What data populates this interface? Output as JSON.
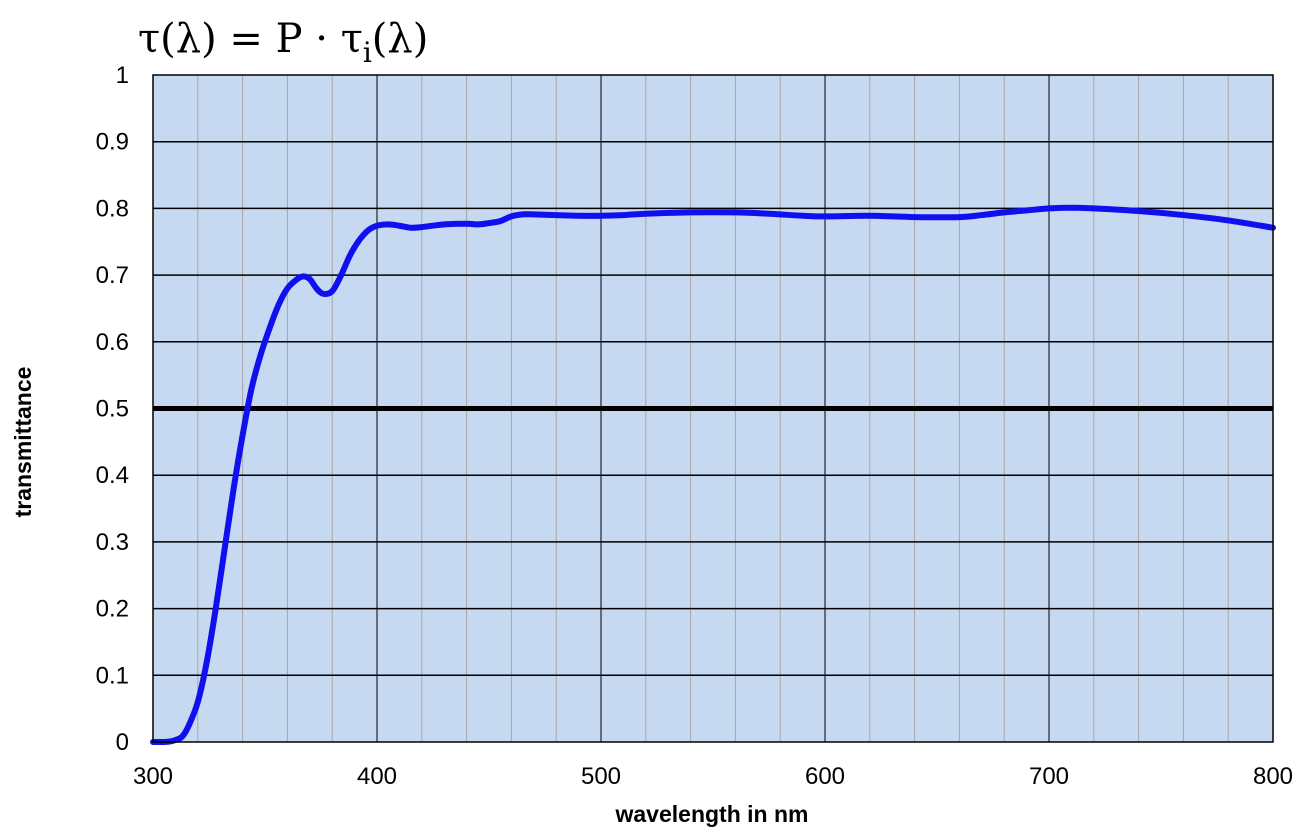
{
  "chart_data": {
    "type": "line",
    "title": "τ(λ) = P · τ_i(λ)",
    "title_parts": {
      "lhs": "τ(λ) = P · τ",
      "subscript": "i",
      "rhs": "(λ)"
    },
    "xlabel": "wavelength in nm",
    "ylabel": "transmittance",
    "xlim": [
      300,
      800
    ],
    "ylim": [
      0,
      1
    ],
    "x_major_ticks": [
      300,
      400,
      500,
      600,
      700,
      800
    ],
    "x_tick_labels": [
      "300",
      "400",
      "500",
      "600",
      "700",
      "800"
    ],
    "x_minor_step": 20,
    "y_ticks": [
      0,
      0.1,
      0.2,
      0.3,
      0.4,
      0.5,
      0.6,
      0.7,
      0.8,
      0.9,
      1
    ],
    "y_tick_labels": [
      "0",
      "0.1",
      "0.2",
      "0.3",
      "0.4",
      "0.5",
      "0.6",
      "0.7",
      "0.8",
      "0.9",
      "1"
    ],
    "grid": true,
    "reference_line": {
      "y": 0.5,
      "color": "#000000"
    },
    "plot_background": "#c6d9f0",
    "series": [
      {
        "color": "#1010ee",
        "points": [
          [
            300,
            0
          ],
          [
            305,
            0
          ],
          [
            308,
            0.001
          ],
          [
            310,
            0.003
          ],
          [
            313,
            0.008
          ],
          [
            316,
            0.025
          ],
          [
            320,
            0.06
          ],
          [
            324,
            0.12
          ],
          [
            328,
            0.2
          ],
          [
            332,
            0.29
          ],
          [
            336,
            0.38
          ],
          [
            340,
            0.46
          ],
          [
            344,
            0.53
          ],
          [
            348,
            0.58
          ],
          [
            352,
            0.62
          ],
          [
            356,
            0.655
          ],
          [
            360,
            0.68
          ],
          [
            364,
            0.693
          ],
          [
            367,
            0.698
          ],
          [
            370,
            0.694
          ],
          [
            373,
            0.68
          ],
          [
            376,
            0.672
          ],
          [
            380,
            0.676
          ],
          [
            384,
            0.7
          ],
          [
            388,
            0.73
          ],
          [
            392,
            0.752
          ],
          [
            396,
            0.767
          ],
          [
            400,
            0.774
          ],
          [
            405,
            0.776
          ],
          [
            410,
            0.774
          ],
          [
            415,
            0.771
          ],
          [
            420,
            0.772
          ],
          [
            430,
            0.776
          ],
          [
            440,
            0.777
          ],
          [
            445,
            0.776
          ],
          [
            450,
            0.778
          ],
          [
            455,
            0.781
          ],
          [
            460,
            0.788
          ],
          [
            465,
            0.791
          ],
          [
            470,
            0.791
          ],
          [
            480,
            0.79
          ],
          [
            490,
            0.789
          ],
          [
            500,
            0.789
          ],
          [
            510,
            0.79
          ],
          [
            520,
            0.792
          ],
          [
            540,
            0.794
          ],
          [
            560,
            0.794
          ],
          [
            575,
            0.792
          ],
          [
            590,
            0.789
          ],
          [
            600,
            0.788
          ],
          [
            620,
            0.789
          ],
          [
            640,
            0.787
          ],
          [
            660,
            0.787
          ],
          [
            670,
            0.79
          ],
          [
            680,
            0.794
          ],
          [
            690,
            0.797
          ],
          [
            700,
            0.8
          ],
          [
            710,
            0.801
          ],
          [
            720,
            0.8
          ],
          [
            740,
            0.796
          ],
          [
            760,
            0.79
          ],
          [
            780,
            0.782
          ],
          [
            800,
            0.771
          ]
        ]
      }
    ]
  }
}
